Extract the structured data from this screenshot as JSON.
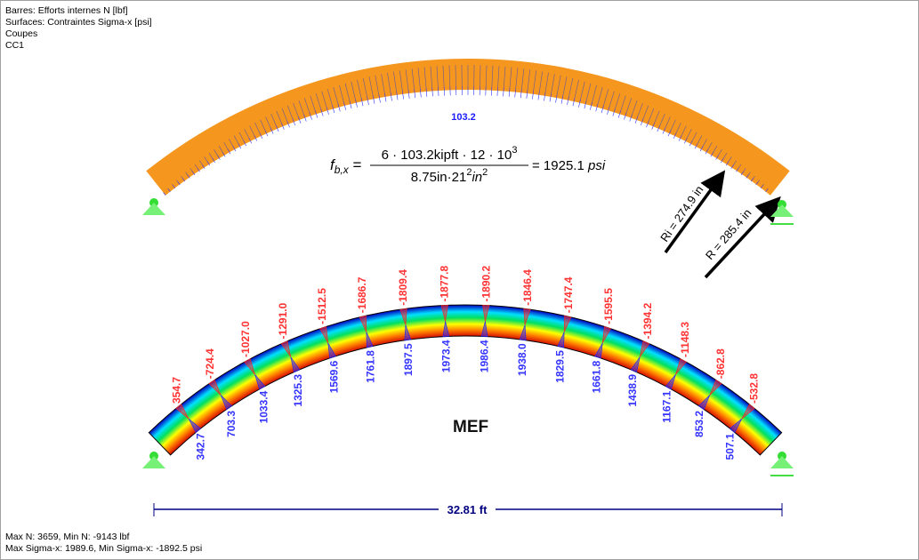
{
  "header_lines": [
    "Barres: Efforts internes N [lbf]",
    "Surfaces: Contraintes Sigma-x [psi]",
    "Coupes",
    "CC1"
  ],
  "footer_lines": [
    "Max N: 3659, Min N: -9143 lbf",
    "Max Sigma-x: 1989.6, Min Sigma-x: -1892.5 psi"
  ],
  "beam_moment_label": "103.2",
  "formula": {
    "lhs": "f",
    "lhs_sub": "b,x",
    "numerator": "6 · 103.2kipft · 12 · 10",
    "numerator_exp": "3",
    "denominator_a": "8.75in·21",
    "denominator_exp1": "2",
    "denominator_b": "in",
    "denominator_exp2": "2",
    "result": "= 1925.1",
    "result_unit": "psi"
  },
  "radius_inner_label": "Ri = 274.9 in",
  "radius_outer_label": "R = 285.4 in",
  "fem_label": "MEF",
  "dimension_label": "32.81 ft",
  "top_stress_values": [
    "354.7",
    "-724.4",
    "-1027.0",
    "-1291.0",
    "-1512.5",
    "-1686.7",
    "-1809.4",
    "-1877.8",
    "-1890.2",
    "-1846.4",
    "-1747.4",
    "-1595.5",
    "-1394.2",
    "-1148.3",
    "-862.8",
    "-532.8"
  ],
  "bottom_stress_values": [
    "342.7",
    "703.3",
    "1033.4",
    "1325.3",
    "1569.6",
    "1761.8",
    "1897.5",
    "1973.4",
    "1986.4",
    "1938.0",
    "1829.5",
    "1661.8",
    "1438.9",
    "1167.1",
    "853.2",
    "507.1"
  ],
  "colors": {
    "beam": "#f5961e",
    "top_label": "#ff3333",
    "bottom_label": "#3535ff",
    "support": "#66ee66",
    "dimension": "#000080"
  }
}
